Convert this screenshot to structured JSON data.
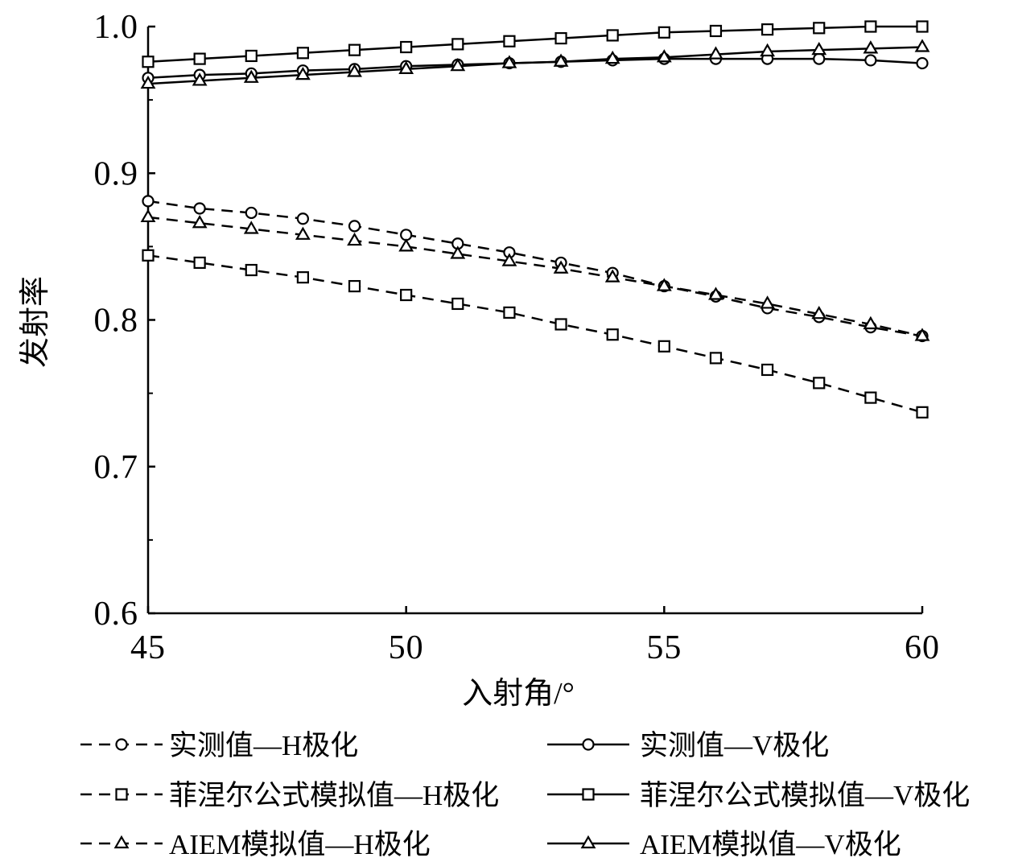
{
  "chart_data": {
    "type": "line",
    "xlabel": "入射角/°",
    "ylabel": "发射率",
    "xlim": [
      45,
      60
    ],
    "ylim": [
      0.6,
      1.0
    ],
    "xticks": [
      "45",
      "50",
      "55",
      "60"
    ],
    "yticks": [
      "0.6",
      "0.7",
      "0.8",
      "0.9",
      "1.0"
    ],
    "grid": false,
    "legend_position": "bottom",
    "x": [
      45,
      46,
      47,
      48,
      49,
      50,
      51,
      52,
      53,
      54,
      55,
      56,
      57,
      58,
      59,
      60
    ],
    "series": [
      {
        "name": "实测值—H极化",
        "line": "dashed",
        "marker": "circle",
        "values": [
          0.881,
          0.876,
          0.873,
          0.869,
          0.864,
          0.858,
          0.852,
          0.846,
          0.839,
          0.832,
          0.823,
          0.816,
          0.808,
          0.802,
          0.795,
          0.789
        ]
      },
      {
        "name": "实测值—V极化",
        "line": "solid",
        "marker": "circle",
        "values": [
          0.965,
          0.967,
          0.968,
          0.97,
          0.971,
          0.973,
          0.974,
          0.975,
          0.976,
          0.977,
          0.978,
          0.978,
          0.978,
          0.978,
          0.977,
          0.975
        ]
      },
      {
        "name": "菲涅尔公式模拟值—H极化",
        "line": "dashed",
        "marker": "square",
        "values": [
          0.844,
          0.839,
          0.834,
          0.829,
          0.823,
          0.817,
          0.811,
          0.805,
          0.797,
          0.79,
          0.782,
          0.774,
          0.766,
          0.757,
          0.747,
          0.737
        ]
      },
      {
        "name": "菲涅尔公式模拟值—V极化",
        "line": "solid",
        "marker": "square",
        "values": [
          0.976,
          0.978,
          0.98,
          0.982,
          0.984,
          0.986,
          0.988,
          0.99,
          0.992,
          0.994,
          0.996,
          0.997,
          0.998,
          0.999,
          1.0,
          1.0
        ]
      },
      {
        "name": "AIEM模拟值—H极化",
        "line": "dashed",
        "marker": "triangle",
        "values": [
          0.87,
          0.866,
          0.862,
          0.858,
          0.854,
          0.85,
          0.845,
          0.84,
          0.835,
          0.829,
          0.823,
          0.817,
          0.811,
          0.804,
          0.797,
          0.789
        ]
      },
      {
        "name": "AIEM模拟值—V极化",
        "line": "solid",
        "marker": "triangle",
        "values": [
          0.961,
          0.963,
          0.965,
          0.967,
          0.969,
          0.971,
          0.973,
          0.975,
          0.976,
          0.978,
          0.979,
          0.981,
          0.983,
          0.984,
          0.985,
          0.986
        ]
      }
    ]
  },
  "colors": {
    "line": "#000000",
    "marker_fill": "#ffffff",
    "background": "#ffffff"
  }
}
